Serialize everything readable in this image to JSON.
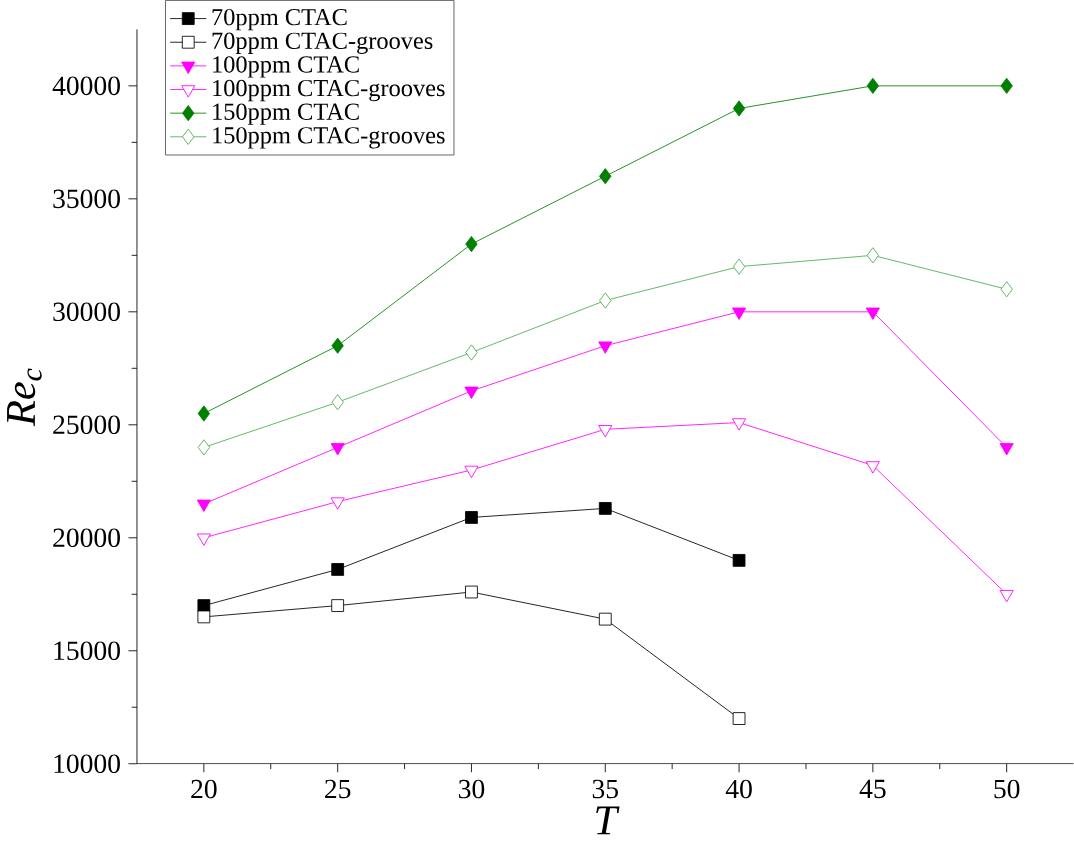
{
  "chart_data": {
    "type": "line",
    "xlabel": "T",
    "ylabel": "Re$_{c}$",
    "x": [
      20,
      25,
      30,
      35,
      40,
      45,
      50
    ],
    "xlim": [
      17.5,
      52.5
    ],
    "xticks": [
      20,
      25,
      30,
      35,
      40,
      45,
      50
    ],
    "ylim": [
      10000,
      42500
    ],
    "yticks": [
      10000,
      15000,
      20000,
      25000,
      30000,
      35000,
      40000
    ],
    "legend": "top left",
    "grid": false,
    "series": [
      {
        "name": "70ppm CTAC",
        "color": "#000000",
        "marker": "square",
        "values": [
          17000,
          18600,
          20900,
          21300,
          19000,
          null,
          null
        ]
      },
      {
        "name": "70ppm CTAC-grooves",
        "color": "#000000",
        "marker": "square",
        "values": [
          16500,
          17000,
          17600,
          16400,
          12000,
          null,
          null
        ]
      },
      {
        "name": "100ppm CTAC",
        "color": "#ff00ff",
        "marker": "triangle",
        "values": [
          21500,
          24000,
          26500,
          28500,
          30000,
          30000,
          24000
        ]
      },
      {
        "name": "100ppm CTAC-grooves",
        "color": "#ff00ff",
        "marker": "triangle",
        "values": [
          20000,
          21600,
          23000,
          24800,
          25100,
          23200,
          17500
        ]
      },
      {
        "name": "150ppm CTAC",
        "color": "#007f00",
        "marker": "diamond",
        "values": [
          25500,
          28500,
          33000,
          36000,
          39000,
          40000,
          40000
        ]
      },
      {
        "name": "150ppm CTAC-grooves",
        "color": "#4daa4d",
        "marker": "diamond",
        "values": [
          24000,
          26000,
          28200,
          30500,
          32000,
          32500,
          31000
        ]
      }
    ]
  }
}
